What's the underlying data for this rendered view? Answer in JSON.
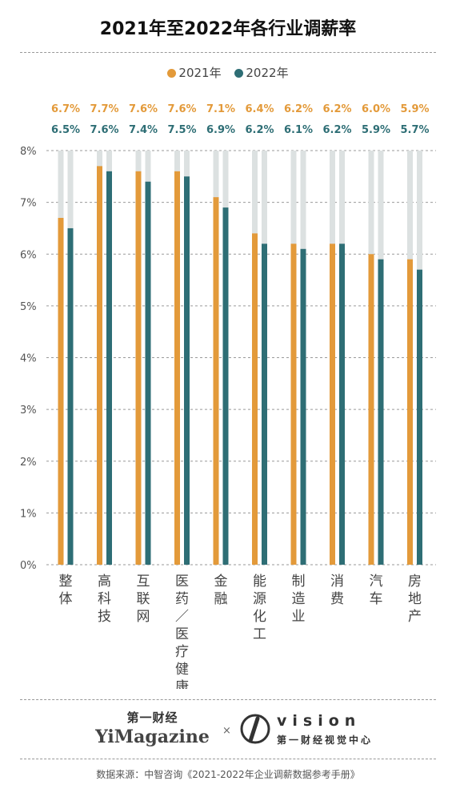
{
  "chart_data": {
    "type": "bar",
    "title": "2021年至2022年各行业调薪率",
    "categories": [
      "整体",
      "高科技",
      "互联网",
      "医药/医疗健康",
      "金融",
      "能源化工",
      "制造业",
      "消费",
      "汽车",
      "房地产"
    ],
    "category_labels": [
      "整体",
      "高科技",
      "互联网",
      "医药／医疗健康",
      "金融",
      "能源化工",
      "制造业",
      "消费",
      "汽车",
      "房地产"
    ],
    "series": [
      {
        "name": "2021年",
        "values": [
          6.7,
          7.7,
          7.6,
          7.6,
          7.1,
          6.4,
          6.2,
          6.2,
          6.0,
          5.9
        ],
        "labels": [
          "6.7%",
          "7.7%",
          "7.6%",
          "7.6%",
          "7.1%",
          "6.4%",
          "6.2%",
          "6.2%",
          "6.0%",
          "5.9%"
        ]
      },
      {
        "name": "2022年",
        "values": [
          6.5,
          7.6,
          7.4,
          7.5,
          6.9,
          6.2,
          6.1,
          6.2,
          5.9,
          5.7
        ],
        "labels": [
          "6.5%",
          "7.6%",
          "7.4%",
          "7.5%",
          "6.9%",
          "6.2%",
          "6.1%",
          "6.2%",
          "5.9%",
          "5.7%"
        ]
      }
    ],
    "ylim": [
      0,
      8
    ],
    "yticks": [
      "0%",
      "1%",
      "2%",
      "3%",
      "4%",
      "5%",
      "6%",
      "7%",
      "8%"
    ],
    "grid": true,
    "legend": "top-center",
    "colors": {
      "s2021": "#E39A3A",
      "s2022": "#2E6E75",
      "track": "#DCE1E1",
      "grid": "#9A9A9A"
    }
  },
  "footer": {
    "brand_cn": "第一财经",
    "brand_en": "YiMagazine",
    "times": "×",
    "vision_en": "vision",
    "vision_cn": "第一财经视觉中心",
    "source": "数据来源：中智咨询《2021-2022年企业调薪数据参考手册》"
  }
}
